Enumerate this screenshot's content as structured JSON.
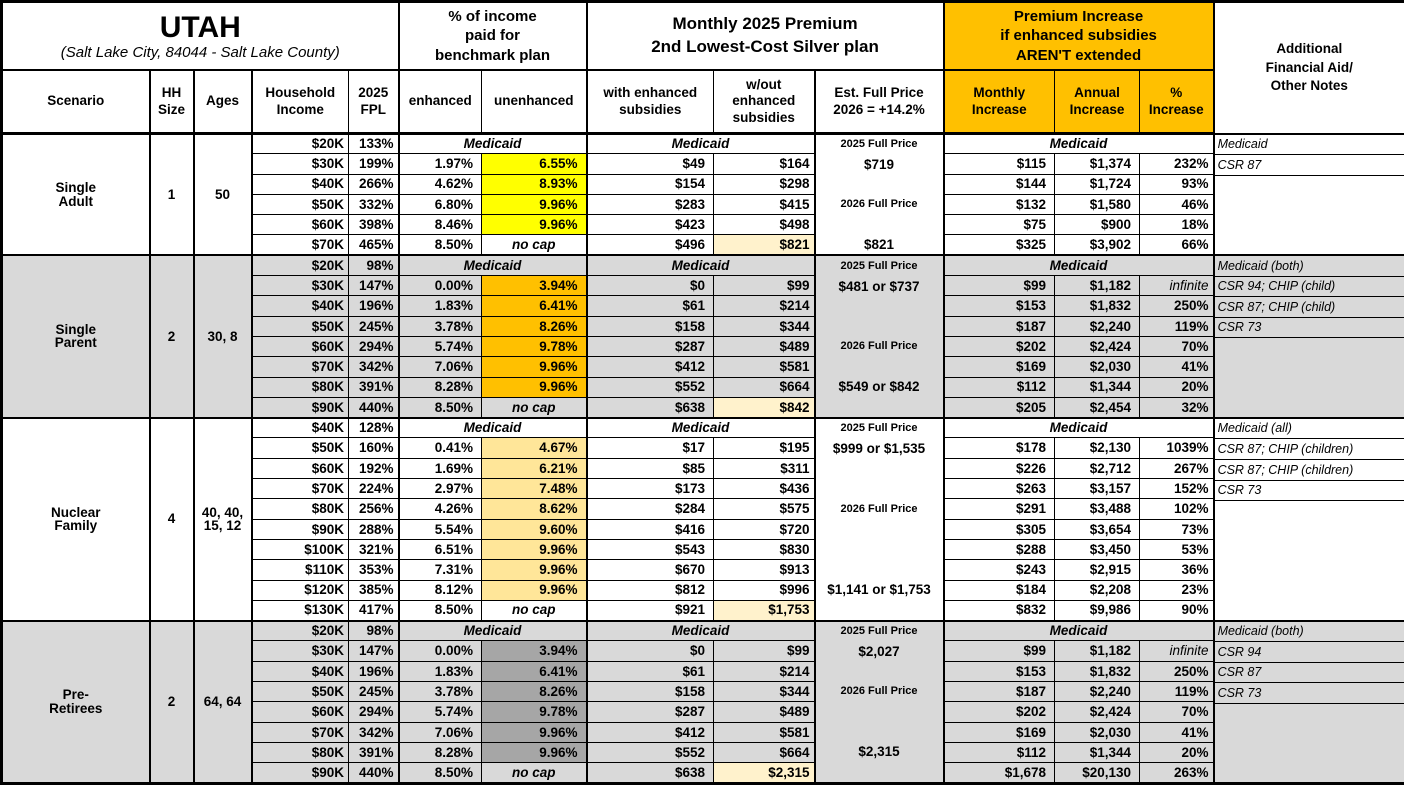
{
  "title": {
    "state": "UTAH",
    "location": "(Salt Lake City, 84044 - Salt Lake County)"
  },
  "group_headers": {
    "income_pct": "% of income\npaid for\nbenchmark plan",
    "premium": "Monthly 2025 Premium\n2nd Lowest-Cost Silver plan",
    "increase": "Premium Increase\nif enhanced subsidies\nAREN'T extended",
    "notes": "Additional\nFinancial Aid/\nOther Notes"
  },
  "column_headers": {
    "scenario": "Scenario",
    "hh_size": "HH\nSize",
    "ages": "Ages",
    "income": "Household\nIncome",
    "fpl": "2025\nFPL",
    "enhanced": "enhanced",
    "unenhanced": "unenhanced",
    "with_sub": "with enhanced\nsubsidies",
    "without_sub": "w/out\nenhanced\nsubsidies",
    "est_full_price": "Est. Full Price\n2026 = +14.2%",
    "monthly": "Monthly\nIncrease",
    "annual": "Annual\nIncrease",
    "pct": "%\nIncrease"
  },
  "labels": {
    "medicaid": "Medicaid",
    "no_cap": "no cap",
    "infinite": "infinite"
  },
  "colors": {
    "header_orange": "#FFC000",
    "section_gray": "#D9D9D9",
    "highlight_yellow": "#FFFF00",
    "highlight_orange": "#FFC000",
    "highlight_tan": "#FFE699",
    "highlight_dark_gray": "#A6A6A6",
    "highlight_cream": "#FFF2CC",
    "border_black": "#000000"
  },
  "sections": [
    {
      "scenario": "Single\nAdult",
      "hh_size": "1",
      "ages": "50",
      "bg": "#FFFFFF",
      "highlight": "#FFFF00",
      "medicaid_row": {
        "income": "$20K",
        "fpl": "133%"
      },
      "rows": [
        {
          "income": "$30K",
          "fpl": "199%",
          "enhanced": "1.97%",
          "unenhanced": "6.55%",
          "with_sub": "$49",
          "without_sub": "$164",
          "monthly": "$115",
          "annual": "$1,374",
          "pct": "232%"
        },
        {
          "income": "$40K",
          "fpl": "266%",
          "enhanced": "4.62%",
          "unenhanced": "8.93%",
          "with_sub": "$154",
          "without_sub": "$298",
          "monthly": "$144",
          "annual": "$1,724",
          "pct": "93%"
        },
        {
          "income": "$50K",
          "fpl": "332%",
          "enhanced": "6.80%",
          "unenhanced": "9.96%",
          "with_sub": "$283",
          "without_sub": "$415",
          "monthly": "$132",
          "annual": "$1,580",
          "pct": "46%"
        },
        {
          "income": "$60K",
          "fpl": "398%",
          "enhanced": "8.46%",
          "unenhanced": "9.96%",
          "with_sub": "$423",
          "without_sub": "$498",
          "monthly": "$75",
          "annual": "$900",
          "pct": "18%"
        },
        {
          "income": "$70K",
          "fpl": "465%",
          "enhanced": "8.50%",
          "unenhanced": "no cap",
          "with_sub": "$496",
          "without_sub": "$821",
          "wo_highlight": true,
          "monthly": "$325",
          "annual": "$3,902",
          "pct": "66%"
        }
      ],
      "notes": [
        "Medicaid",
        "CSR 87",
        "",
        "",
        "",
        ""
      ],
      "note_dividers": 2,
      "full_price": [
        {
          "row": 0,
          "text": "2025 Full Price",
          "small": true
        },
        {
          "row": 1,
          "text": "$719"
        },
        {
          "row": 3,
          "text": "2026 Full Price",
          "small": true
        },
        {
          "row": 5,
          "text": "$821"
        }
      ]
    },
    {
      "scenario": "Single\nParent",
      "hh_size": "2",
      "ages": "30, 8",
      "bg": "#D9D9D9",
      "highlight": "#FFC000",
      "medicaid_row": {
        "income": "$20K",
        "fpl": "98%"
      },
      "rows": [
        {
          "income": "$30K",
          "fpl": "147%",
          "enhanced": "0.00%",
          "unenhanced": "3.94%",
          "with_sub": "$0",
          "without_sub": "$99",
          "monthly": "$99",
          "annual": "$1,182",
          "pct": "infinite"
        },
        {
          "income": "$40K",
          "fpl": "196%",
          "enhanced": "1.83%",
          "unenhanced": "6.41%",
          "with_sub": "$61",
          "without_sub": "$214",
          "monthly": "$153",
          "annual": "$1,832",
          "pct": "250%"
        },
        {
          "income": "$50K",
          "fpl": "245%",
          "enhanced": "3.78%",
          "unenhanced": "8.26%",
          "with_sub": "$158",
          "without_sub": "$344",
          "monthly": "$187",
          "annual": "$2,240",
          "pct": "119%"
        },
        {
          "income": "$60K",
          "fpl": "294%",
          "enhanced": "5.74%",
          "unenhanced": "9.78%",
          "with_sub": "$287",
          "without_sub": "$489",
          "monthly": "$202",
          "annual": "$2,424",
          "pct": "70%"
        },
        {
          "income": "$70K",
          "fpl": "342%",
          "enhanced": "7.06%",
          "unenhanced": "9.96%",
          "with_sub": "$412",
          "without_sub": "$581",
          "monthly": "$169",
          "annual": "$2,030",
          "pct": "41%"
        },
        {
          "income": "$80K",
          "fpl": "391%",
          "enhanced": "8.28%",
          "unenhanced": "9.96%",
          "with_sub": "$552",
          "without_sub": "$664",
          "monthly": "$112",
          "annual": "$1,344",
          "pct": "20%"
        },
        {
          "income": "$90K",
          "fpl": "440%",
          "enhanced": "8.50%",
          "unenhanced": "no cap",
          "with_sub": "$638",
          "without_sub": "$842",
          "wo_highlight": true,
          "monthly": "$205",
          "annual": "$2,454",
          "pct": "32%"
        }
      ],
      "notes": [
        "Medicaid (both)",
        "CSR 94; CHIP (child)",
        "CSR 87; CHIP (child)",
        "CSR 73",
        "",
        "",
        "",
        ""
      ],
      "note_dividers": 4,
      "full_price": [
        {
          "row": 0,
          "text": "2025 Full Price",
          "small": true
        },
        {
          "row": 1,
          "text": "$481 or $737"
        },
        {
          "row": 4,
          "text": "2026 Full Price",
          "small": true
        },
        {
          "row": 6,
          "text": "$549 or $842"
        }
      ]
    },
    {
      "scenario": "Nuclear\nFamily",
      "hh_size": "4",
      "ages": "40, 40,\n15, 12",
      "bg": "#FFFFFF",
      "highlight": "#FFE699",
      "medicaid_row": {
        "income": "$40K",
        "fpl": "128%"
      },
      "rows": [
        {
          "income": "$50K",
          "fpl": "160%",
          "enhanced": "0.41%",
          "unenhanced": "4.67%",
          "with_sub": "$17",
          "without_sub": "$195",
          "monthly": "$178",
          "annual": "$2,130",
          "pct": "1039%"
        },
        {
          "income": "$60K",
          "fpl": "192%",
          "enhanced": "1.69%",
          "unenhanced": "6.21%",
          "with_sub": "$85",
          "without_sub": "$311",
          "monthly": "$226",
          "annual": "$2,712",
          "pct": "267%"
        },
        {
          "income": "$70K",
          "fpl": "224%",
          "enhanced": "2.97%",
          "unenhanced": "7.48%",
          "with_sub": "$173",
          "without_sub": "$436",
          "monthly": "$263",
          "annual": "$3,157",
          "pct": "152%"
        },
        {
          "income": "$80K",
          "fpl": "256%",
          "enhanced": "4.26%",
          "unenhanced": "8.62%",
          "with_sub": "$284",
          "without_sub": "$575",
          "monthly": "$291",
          "annual": "$3,488",
          "pct": "102%"
        },
        {
          "income": "$90K",
          "fpl": "288%",
          "enhanced": "5.54%",
          "unenhanced": "9.60%",
          "with_sub": "$416",
          "without_sub": "$720",
          "monthly": "$305",
          "annual": "$3,654",
          "pct": "73%"
        },
        {
          "income": "$100K",
          "fpl": "321%",
          "enhanced": "6.51%",
          "unenhanced": "9.96%",
          "with_sub": "$543",
          "without_sub": "$830",
          "monthly": "$288",
          "annual": "$3,450",
          "pct": "53%"
        },
        {
          "income": "$110K",
          "fpl": "353%",
          "enhanced": "7.31%",
          "unenhanced": "9.96%",
          "with_sub": "$670",
          "without_sub": "$913",
          "monthly": "$243",
          "annual": "$2,915",
          "pct": "36%"
        },
        {
          "income": "$120K",
          "fpl": "385%",
          "enhanced": "8.12%",
          "unenhanced": "9.96%",
          "with_sub": "$812",
          "without_sub": "$996",
          "monthly": "$184",
          "annual": "$2,208",
          "pct": "23%"
        },
        {
          "income": "$130K",
          "fpl": "417%",
          "enhanced": "8.50%",
          "unenhanced": "no cap",
          "with_sub": "$921",
          "without_sub": "$1,753",
          "wo_highlight": true,
          "monthly": "$832",
          "annual": "$9,986",
          "pct": "90%"
        }
      ],
      "notes": [
        "Medicaid (all)",
        "CSR 87; CHIP (children)",
        "CSR 87; CHIP (children)",
        "CSR 73",
        "",
        "",
        "",
        "",
        "",
        ""
      ],
      "note_dividers": 4,
      "full_price": [
        {
          "row": 0,
          "text": "2025 Full Price",
          "small": true
        },
        {
          "row": 1,
          "text": "$999 or $1,535"
        },
        {
          "row": 4,
          "text": "2026 Full Price",
          "small": true
        },
        {
          "row": 8,
          "text": "$1,141 or $1,753"
        }
      ]
    },
    {
      "scenario": "Pre-\nRetirees",
      "hh_size": "2",
      "ages": "64, 64",
      "bg": "#D9D9D9",
      "highlight": "#A6A6A6",
      "medicaid_row": {
        "income": "$20K",
        "fpl": "98%"
      },
      "rows": [
        {
          "income": "$30K",
          "fpl": "147%",
          "enhanced": "0.00%",
          "unenhanced": "3.94%",
          "with_sub": "$0",
          "without_sub": "$99",
          "monthly": "$99",
          "annual": "$1,182",
          "pct": "infinite"
        },
        {
          "income": "$40K",
          "fpl": "196%",
          "enhanced": "1.83%",
          "unenhanced": "6.41%",
          "with_sub": "$61",
          "without_sub": "$214",
          "monthly": "$153",
          "annual": "$1,832",
          "pct": "250%"
        },
        {
          "income": "$50K",
          "fpl": "245%",
          "enhanced": "3.78%",
          "unenhanced": "8.26%",
          "with_sub": "$158",
          "without_sub": "$344",
          "monthly": "$187",
          "annual": "$2,240",
          "pct": "119%"
        },
        {
          "income": "$60K",
          "fpl": "294%",
          "enhanced": "5.74%",
          "unenhanced": "9.78%",
          "with_sub": "$287",
          "without_sub": "$489",
          "monthly": "$202",
          "annual": "$2,424",
          "pct": "70%"
        },
        {
          "income": "$70K",
          "fpl": "342%",
          "enhanced": "7.06%",
          "unenhanced": "9.96%",
          "with_sub": "$412",
          "without_sub": "$581",
          "monthly": "$169",
          "annual": "$2,030",
          "pct": "41%"
        },
        {
          "income": "$80K",
          "fpl": "391%",
          "enhanced": "8.28%",
          "unenhanced": "9.96%",
          "with_sub": "$552",
          "without_sub": "$664",
          "monthly": "$112",
          "annual": "$1,344",
          "pct": "20%"
        },
        {
          "income": "$90K",
          "fpl": "440%",
          "enhanced": "8.50%",
          "unenhanced": "no cap",
          "with_sub": "$638",
          "without_sub": "$2,315",
          "wo_highlight": true,
          "monthly": "$1,678",
          "annual": "$20,130",
          "pct": "263%"
        }
      ],
      "notes": [
        "Medicaid (both)",
        "CSR 94",
        "CSR 87",
        "CSR 73",
        "",
        "",
        "",
        ""
      ],
      "note_dividers": 4,
      "full_price": [
        {
          "row": 0,
          "text": "2025 Full Price",
          "small": true
        },
        {
          "row": 1,
          "text": "$2,027"
        },
        {
          "row": 3,
          "text": "2026 Full Price",
          "small": true
        },
        {
          "row": 6,
          "text": "$2,315"
        }
      ]
    }
  ]
}
